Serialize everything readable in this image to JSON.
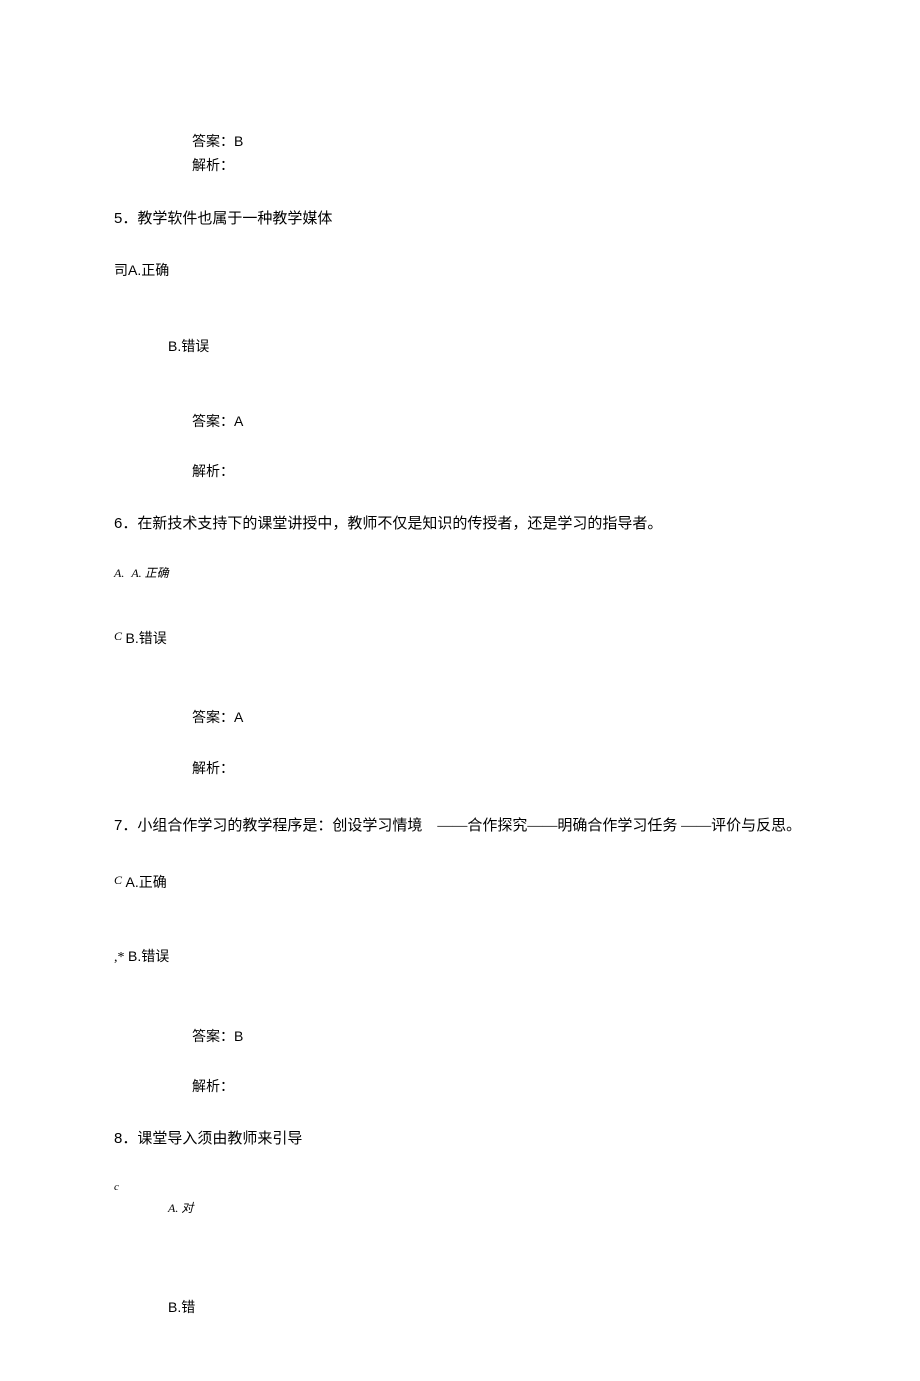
{
  "q4_answer": {
    "answer_label": "答案：",
    "answer_value": "B",
    "analysis_label": "解析："
  },
  "q5": {
    "number": "5",
    "text": "．教学软件也属于一种教学媒体",
    "option_a_prefix": "司",
    "option_a": "A.正确",
    "option_b": "B.错误",
    "answer_label": "答案：",
    "answer_value": "A",
    "analysis_label": "解析："
  },
  "q6": {
    "number": "6",
    "text": "．在新技术支持下的课堂讲授中，教师不仅是知识的传授者，还是学习的指导者。",
    "option_a_prefix": "A.",
    "option_a": "A. 正确",
    "option_b_prefix": "C",
    "option_b": "B.错误",
    "answer_label": "答案：",
    "answer_value": "A",
    "analysis_label": "解析："
  },
  "q7": {
    "number": "7",
    "text_part1": "．小组合作学习的教学程序是：创设学习情境",
    "text_part2": "——合作探究——明确合作学习任务",
    "text_part3": "——评价与反思。",
    "option_a_prefix": "C",
    "option_a": "A.正确",
    "option_b_prefix": ",*",
    "option_b": "B.错误",
    "answer_label": "答案：",
    "answer_value": "B",
    "analysis_label": "解析："
  },
  "q8": {
    "number": "8",
    "text": "．课堂导入须由教师来引导",
    "option_a_prefix": "c",
    "option_a": "A. 对",
    "option_b": "B.错"
  }
}
